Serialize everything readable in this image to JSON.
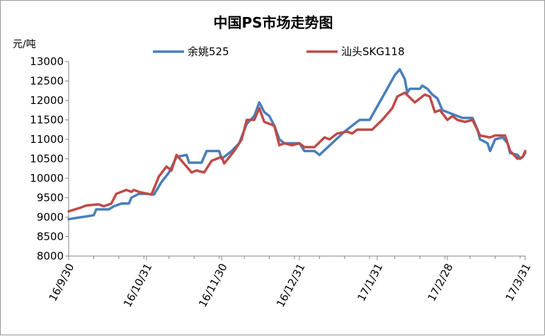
{
  "chart_data": {
    "type": "line",
    "title": "中国PS市场走势图",
    "ylabel": "元/吨",
    "ylim": [
      8000,
      13000
    ],
    "yticks": [
      8000,
      8500,
      9000,
      9500,
      10000,
      10500,
      11000,
      11500,
      12000,
      12500,
      13000
    ],
    "x_start": "2016-09-30",
    "x_end": "2017-03-31",
    "xticks": [
      "16/9/30",
      "16/10/31",
      "16/11/30",
      "16/12/31",
      "17/1/31",
      "17/2/28",
      "17/3/31"
    ],
    "legend_position": "top-center",
    "grid": false,
    "series": [
      {
        "name": "余姚525",
        "color": "#4a7ebb",
        "points": [
          [
            "2016-09-30",
            8950
          ],
          [
            "2016-10-03",
            8980
          ],
          [
            "2016-10-10",
            9050
          ],
          [
            "2016-10-11",
            9200
          ],
          [
            "2016-10-16",
            9200
          ],
          [
            "2016-10-18",
            9280
          ],
          [
            "2016-10-21",
            9350
          ],
          [
            "2016-10-24",
            9350
          ],
          [
            "2016-10-25",
            9500
          ],
          [
            "2016-10-28",
            9600
          ],
          [
            "2016-10-31",
            9600
          ],
          [
            "2016-11-03",
            9580
          ],
          [
            "2016-11-06",
            9900
          ],
          [
            "2016-11-09",
            10150
          ],
          [
            "2016-11-12",
            10550
          ],
          [
            "2016-11-16",
            10600
          ],
          [
            "2016-11-17",
            10400
          ],
          [
            "2016-11-22",
            10400
          ],
          [
            "2016-11-24",
            10700
          ],
          [
            "2016-11-29",
            10700
          ],
          [
            "2016-11-30",
            10500
          ],
          [
            "2016-12-04",
            10700
          ],
          [
            "2016-12-07",
            10900
          ],
          [
            "2016-12-10",
            11400
          ],
          [
            "2016-12-13",
            11600
          ],
          [
            "2016-12-15",
            11950
          ],
          [
            "2016-12-17",
            11700
          ],
          [
            "2016-12-19",
            11600
          ],
          [
            "2016-12-21",
            11350
          ],
          [
            "2016-12-23",
            11000
          ],
          [
            "2016-12-25",
            10900
          ],
          [
            "2016-12-31",
            10900
          ],
          [
            "2017-01-02",
            10700
          ],
          [
            "2017-01-06",
            10700
          ],
          [
            "2017-01-08",
            10600
          ],
          [
            "2017-01-13",
            10900
          ],
          [
            "2017-01-18",
            11200
          ],
          [
            "2017-01-20",
            11300
          ],
          [
            "2017-01-24",
            11500
          ],
          [
            "2017-01-28",
            11500
          ],
          [
            "2017-02-04",
            12300
          ],
          [
            "2017-02-07",
            12650
          ],
          [
            "2017-02-09",
            12800
          ],
          [
            "2017-02-11",
            12550
          ],
          [
            "2017-02-12",
            12200
          ],
          [
            "2017-02-13",
            12300
          ],
          [
            "2017-02-17",
            12300
          ],
          [
            "2017-02-18",
            12380
          ],
          [
            "2017-02-20",
            12300
          ],
          [
            "2017-02-22",
            12150
          ],
          [
            "2017-02-24",
            12050
          ],
          [
            "2017-02-26",
            11750
          ],
          [
            "2017-02-28",
            11700
          ],
          [
            "2017-03-02",
            11650
          ],
          [
            "2017-03-06",
            11550
          ],
          [
            "2017-03-10",
            11550
          ],
          [
            "2017-03-12",
            11250
          ],
          [
            "2017-03-13",
            11000
          ],
          [
            "2017-03-16",
            10900
          ],
          [
            "2017-03-17",
            10700
          ],
          [
            "2017-03-19",
            11000
          ],
          [
            "2017-03-22",
            11050
          ],
          [
            "2017-03-24",
            10900
          ],
          [
            "2017-03-25",
            10650
          ],
          [
            "2017-03-28",
            10600
          ],
          [
            "2017-03-29",
            10500
          ],
          [
            "2017-03-30",
            10550
          ],
          [
            "2017-03-31",
            10650
          ]
        ]
      },
      {
        "name": "汕头SKG118",
        "color": "#be4b48",
        "points": [
          [
            "2016-09-30",
            9150
          ],
          [
            "2016-10-05",
            9250
          ],
          [
            "2016-10-07",
            9300
          ],
          [
            "2016-10-12",
            9330
          ],
          [
            "2016-10-14",
            9280
          ],
          [
            "2016-10-17",
            9350
          ],
          [
            "2016-10-19",
            9600
          ],
          [
            "2016-10-23",
            9700
          ],
          [
            "2016-10-25",
            9650
          ],
          [
            "2016-10-26",
            9700
          ],
          [
            "2016-10-28",
            9650
          ],
          [
            "2016-11-02",
            9580
          ],
          [
            "2016-11-05",
            10050
          ],
          [
            "2016-11-08",
            10300
          ],
          [
            "2016-11-10",
            10200
          ],
          [
            "2016-11-12",
            10600
          ],
          [
            "2016-11-16",
            10300
          ],
          [
            "2016-11-18",
            10150
          ],
          [
            "2016-11-20",
            10200
          ],
          [
            "2016-11-23",
            10150
          ],
          [
            "2016-11-26",
            10450
          ],
          [
            "2016-11-28",
            10500
          ],
          [
            "2016-11-30",
            10550
          ],
          [
            "2016-12-01",
            10380
          ],
          [
            "2016-12-05",
            10700
          ],
          [
            "2016-12-08",
            11000
          ],
          [
            "2016-12-10",
            11500
          ],
          [
            "2016-12-13",
            11500
          ],
          [
            "2016-12-15",
            11800
          ],
          [
            "2016-12-17",
            11450
          ],
          [
            "2016-12-21",
            11350
          ],
          [
            "2016-12-23",
            10850
          ],
          [
            "2016-12-25",
            10900
          ],
          [
            "2016-12-28",
            10850
          ],
          [
            "2016-12-31",
            10900
          ],
          [
            "2017-01-02",
            10800
          ],
          [
            "2017-01-06",
            10800
          ],
          [
            "2017-01-10",
            11050
          ],
          [
            "2017-01-12",
            11000
          ],
          [
            "2017-01-15",
            11150
          ],
          [
            "2017-01-19",
            11200
          ],
          [
            "2017-01-21",
            11150
          ],
          [
            "2017-01-23",
            11250
          ],
          [
            "2017-01-29",
            11250
          ],
          [
            "2017-02-02",
            11500
          ],
          [
            "2017-02-06",
            11800
          ],
          [
            "2017-02-08",
            12100
          ],
          [
            "2017-02-11",
            12200
          ],
          [
            "2017-02-15",
            11950
          ],
          [
            "2017-02-19",
            12150
          ],
          [
            "2017-02-21",
            12100
          ],
          [
            "2017-02-23",
            11700
          ],
          [
            "2017-02-25",
            11750
          ],
          [
            "2017-02-28",
            11500
          ],
          [
            "2017-03-02",
            11600
          ],
          [
            "2017-03-04",
            11500
          ],
          [
            "2017-03-07",
            11450
          ],
          [
            "2017-03-10",
            11500
          ],
          [
            "2017-03-13",
            11100
          ],
          [
            "2017-03-17",
            11050
          ],
          [
            "2017-03-19",
            11100
          ],
          [
            "2017-03-23",
            11100
          ],
          [
            "2017-03-25",
            10700
          ],
          [
            "2017-03-28",
            10500
          ],
          [
            "2017-03-30",
            10550
          ],
          [
            "2017-03-31",
            10700
          ]
        ]
      }
    ]
  }
}
